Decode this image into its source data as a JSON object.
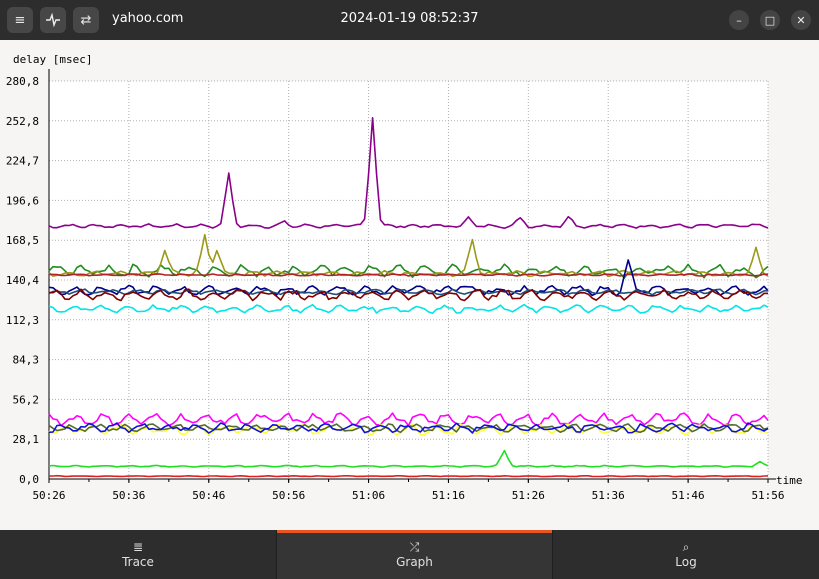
{
  "titlebar": {
    "menu_icon": "hamburger-menu-icon",
    "graph_icon": "pulse-icon",
    "swap_icon": "swap-arrows-icon",
    "host": "yahoo.com",
    "datetime": "2024-01-19 08:52:37",
    "controls": [
      "minimize",
      "maximize",
      "close"
    ]
  },
  "tabs": [
    {
      "label": "Trace",
      "icon": "list-icon"
    },
    {
      "label": "Graph",
      "icon": "shuffle-icon",
      "active": true
    },
    {
      "label": "Log",
      "icon": "search-icon"
    }
  ],
  "chart_data": {
    "type": "line",
    "ylabel": "delay [msec]",
    "xlabel": "time",
    "ylim": [
      0,
      280.8
    ],
    "yticks": [
      "280,8",
      "252,8",
      "224,7",
      "196,6",
      "168,5",
      "140,4",
      "112,3",
      "84,3",
      "56,2",
      "28,1",
      "0,0"
    ],
    "xticks": [
      "50:26",
      "50:36",
      "50:46",
      "50:56",
      "51:06",
      "51:16",
      "51:26",
      "51:36",
      "51:46",
      "51:56"
    ],
    "grid": true,
    "series": [
      {
        "color": "#8b008b",
        "base": 178.5,
        "noise": 1.5,
        "peaks": [
          [
            22.5,
            215
          ],
          [
            40.5,
            256
          ],
          [
            29.5,
            181
          ],
          [
            59,
            184
          ],
          [
            65,
            185
          ],
          [
            52.5,
            184
          ]
        ]
      },
      {
        "color": "#228b22",
        "base": 147,
        "noise": 5,
        "peaks": []
      },
      {
        "color": "#9a9a1a",
        "base": 145,
        "noise": 2,
        "peaks": [
          [
            14.5,
            162
          ],
          [
            19.5,
            172
          ],
          [
            21,
            162
          ],
          [
            53,
            170
          ],
          [
            88.5,
            162
          ]
        ]
      },
      {
        "color": "#b22222",
        "base": 144,
        "noise": 0.8,
        "peaks": []
      },
      {
        "color": "#00008b",
        "base": 133,
        "noise": 3.5,
        "peaks": [
          [
            72.5,
            152
          ],
          [
            51.5,
            139
          ]
        ]
      },
      {
        "color": "#1e4f7a",
        "base": 132,
        "noise": 2,
        "peaks": []
      },
      {
        "color": "#800000",
        "base": 130,
        "noise": 4,
        "peaks": []
      },
      {
        "color": "#00e5e5",
        "base": 120,
        "noise": 3,
        "peaks": []
      },
      {
        "color": "#ff00ff",
        "base": 42,
        "noise": 4.5,
        "peaks": []
      },
      {
        "color": "#ffff33",
        "base": 35,
        "noise": 4,
        "peaks": []
      },
      {
        "color": "#556b2f",
        "base": 36,
        "noise": 3,
        "peaks": []
      },
      {
        "color": "#1010dd",
        "base": 36,
        "noise": 3.5,
        "peaks": []
      },
      {
        "color": "#22dd22",
        "base": 9,
        "noise": 0.6,
        "peaks": [
          [
            57,
            20
          ],
          [
            89,
            12
          ]
        ]
      },
      {
        "color": "#e02020",
        "base": 2,
        "noise": 0.3,
        "peaks": []
      }
    ]
  }
}
